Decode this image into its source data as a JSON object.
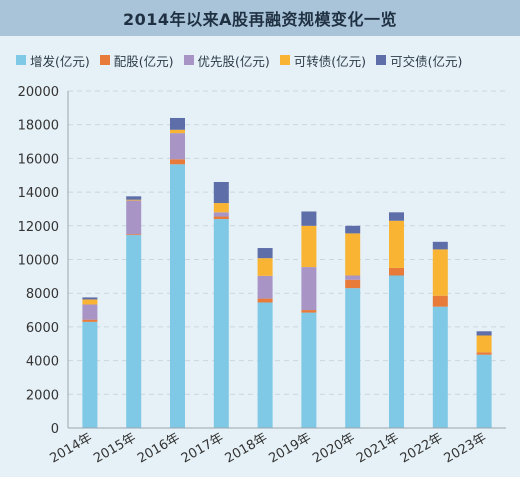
{
  "title": "2014年以来A股再融资规模变化一览",
  "legend": [
    {
      "label": "增发(亿元)",
      "color": "#7fc8e6"
    },
    {
      "label": "配股(亿元)",
      "color": "#e87a3a"
    },
    {
      "label": "优先股(亿元)",
      "color": "#a895c6"
    },
    {
      "label": "可转债(亿元)",
      "color": "#f9b433"
    },
    {
      "label": "可交债(亿元)",
      "color": "#5e6ea8"
    }
  ],
  "chart_data": {
    "type": "bar",
    "stacked": true,
    "title": "2014年以来A股再融资规模变化一览",
    "categories": [
      "2014年",
      "2015年",
      "2016年",
      "2017年",
      "2018年",
      "2019年",
      "2020年",
      "2021年",
      "2022年",
      "2023年"
    ],
    "ylim": [
      0,
      20000
    ],
    "yticks": [
      0,
      2000,
      4000,
      6000,
      8000,
      10000,
      12000,
      14000,
      16000,
      18000,
      20000
    ],
    "grid": true,
    "legend_position": "top",
    "series": [
      {
        "name": "增发(亿元)",
        "color": "#7fc8e6",
        "values": [
          6300,
          11450,
          15650,
          12400,
          7450,
          6850,
          8300,
          9050,
          7200,
          4350
        ]
      },
      {
        "name": "配股(亿元)",
        "color": "#e87a3a",
        "values": [
          130,
          50,
          300,
          150,
          230,
          150,
          500,
          450,
          650,
          140
        ]
      },
      {
        "name": "优先股(亿元)",
        "color": "#a895c6",
        "values": [
          900,
          2000,
          1550,
          250,
          1350,
          2550,
          250,
          0,
          0,
          0
        ]
      },
      {
        "name": "可转债(亿元)",
        "color": "#f9b433",
        "values": [
          300,
          50,
          200,
          550,
          1050,
          2450,
          2500,
          2800,
          2750,
          1000
        ]
      },
      {
        "name": "可交债(亿元)",
        "color": "#5e6ea8",
        "values": [
          120,
          200,
          700,
          1250,
          600,
          850,
          450,
          500,
          450,
          250
        ]
      }
    ]
  }
}
